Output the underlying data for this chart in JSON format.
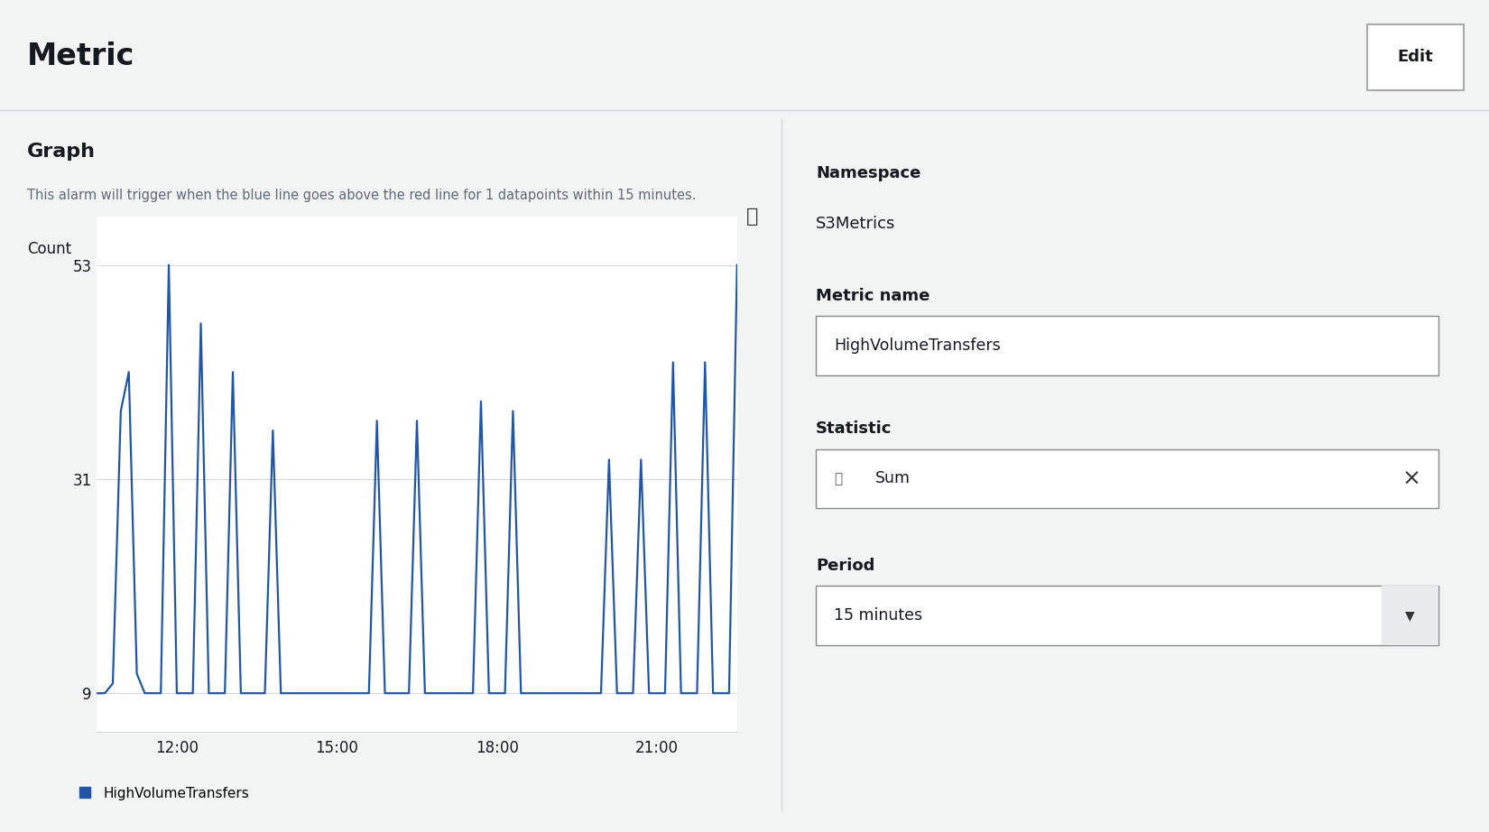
{
  "title": "Metric",
  "edit_button": "Edit",
  "graph_title": "Graph",
  "graph_subtitle": "This alarm will trigger when the blue line goes above the red line for 1 datapoints within 15 minutes.",
  "ylabel": "Count",
  "yticks": [
    9,
    31,
    53
  ],
  "xticks": [
    "12:00",
    "15:00",
    "18:00",
    "21:00"
  ],
  "line_color": "#2255a4",
  "line_width": 1.6,
  "legend_label": "HighVolumeTransfers",
  "legend_color": "#2255a4",
  "namespace_label": "Namespace",
  "namespace_value": "S3Metrics",
  "metric_name_label": "Metric name",
  "metric_name_value": "HighVolumeTransfers",
  "statistic_label": "Statistic",
  "statistic_value": "Sum",
  "period_label": "Period",
  "period_value": "15 minutes",
  "bg_color": "#f2f3f3",
  "panel_bg": "#ffffff",
  "header_bg": "#ffffff",
  "border_color": "#aaaaaa",
  "input_border": "#888888",
  "text_color": "#16191f",
  "subtitle_color": "#5f6b7a",
  "label_color": "#16191f",
  "x_data": [
    0,
    0.5,
    1,
    1.5,
    2,
    2.5,
    3,
    3.5,
    4,
    4.5,
    5,
    5.5,
    6,
    6.5,
    7,
    7.5,
    8,
    8.5,
    9,
    9.5,
    10,
    10.5,
    11,
    11.5,
    12,
    12.5,
    13,
    13.5,
    14,
    14.5,
    15,
    15.5,
    16,
    16.5,
    17,
    17.5,
    18,
    18.5,
    19,
    19.5,
    20,
    20.5,
    21,
    21.5,
    22,
    22.5,
    23,
    23.5,
    24,
    24.5,
    25,
    25.5,
    26,
    26.5,
    27,
    27.5,
    28,
    28.5,
    29,
    29.5,
    30,
    30.5,
    31,
    31.5,
    32,
    32.5,
    33,
    33.5,
    34,
    34.5,
    35,
    35.5,
    36,
    36.5,
    37,
    37.5,
    38,
    38.5,
    39,
    39.5,
    40
  ],
  "y_data": [
    9,
    9,
    10,
    38,
    42,
    11,
    9,
    9,
    9,
    53,
    9,
    9,
    9,
    47,
    9,
    9,
    9,
    42,
    9,
    9,
    9,
    9,
    36,
    9,
    9,
    9,
    9,
    9,
    9,
    9,
    9,
    9,
    9,
    9,
    9,
    37,
    9,
    9,
    9,
    9,
    37,
    9,
    9,
    9,
    9,
    9,
    9,
    9,
    39,
    9,
    9,
    9,
    38,
    9,
    9,
    9,
    9,
    9,
    9,
    9,
    9,
    9,
    9,
    9,
    33,
    9,
    9,
    9,
    33,
    9,
    9,
    9,
    43,
    9,
    9,
    9,
    43,
    9,
    9,
    9,
    53
  ],
  "xlim": [
    0,
    40
  ],
  "ylim": [
    5,
    58
  ],
  "xtick_positions": [
    5,
    15,
    25,
    35
  ],
  "grid_color": "#d5d8dc",
  "divider_color": "#d5d8dc",
  "header_bottom_color": "#d5d8dc"
}
